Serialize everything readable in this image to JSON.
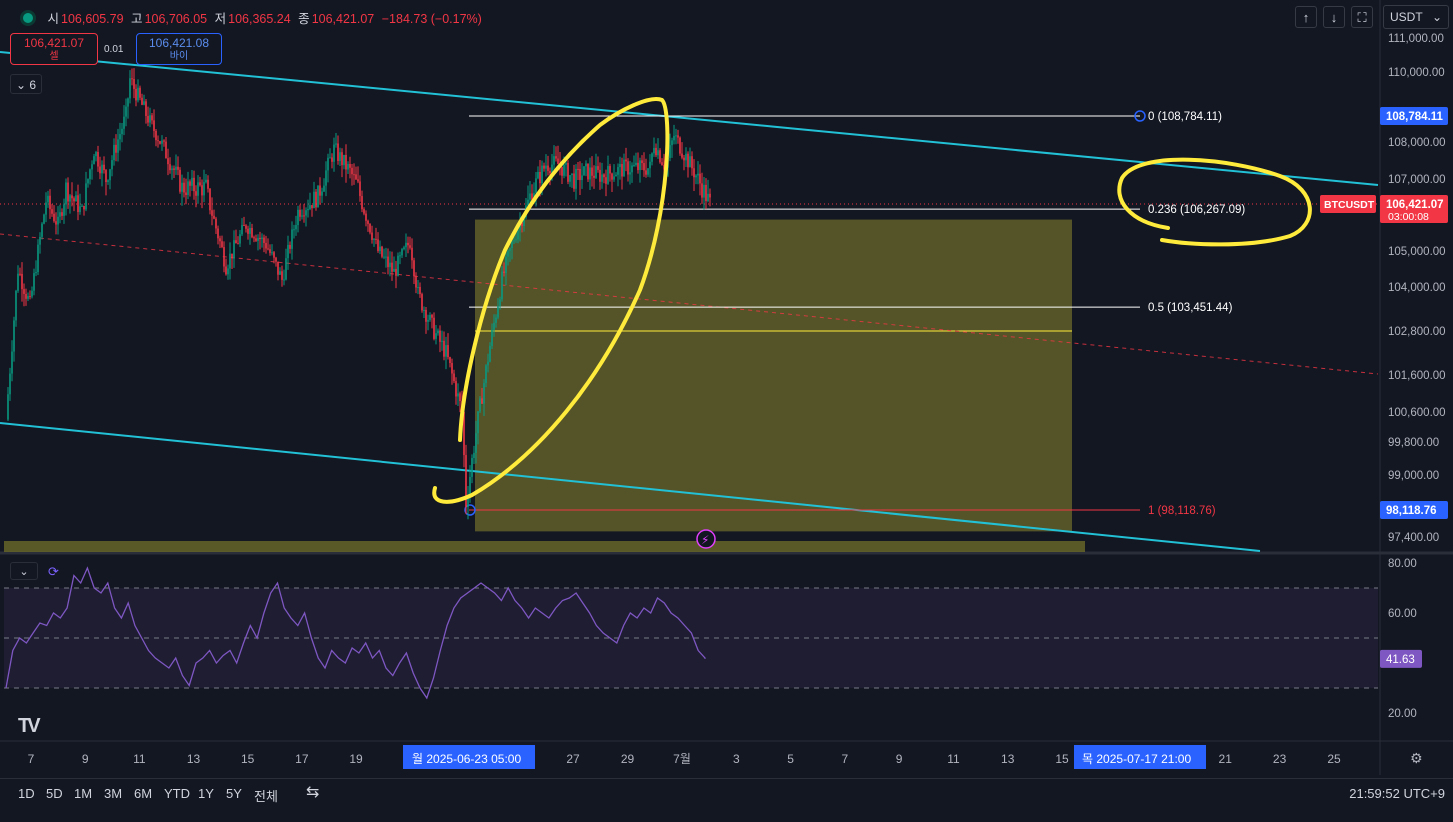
{
  "header": {
    "open_label": "시",
    "open": "106,605.79",
    "high_label": "고",
    "high": "106,706.05",
    "low_label": "저",
    "low": "106,365.24",
    "close_label": "종",
    "close": "106,421.07",
    "change": "−184.73 (−0.17%)"
  },
  "trade": {
    "sell_price": "106,421.07",
    "sell_label": "셀",
    "buy_price": "106,421.08",
    "buy_label": "바이",
    "spread": "0.01"
  },
  "indicator_count": "6",
  "toolbar": {
    "up_icon": "arrow-up-icon",
    "down_icon": "arrow-down-icon",
    "fullscreen_icon": "fullscreen-icon",
    "currency": "USDT"
  },
  "timeframes": [
    "1D",
    "5D",
    "1M",
    "3M",
    "6M",
    "YTD",
    "1Y",
    "5Y",
    "전체"
  ],
  "clock": "21:59:52 UTC+9",
  "colors": {
    "up": "#089981",
    "down": "#f23645",
    "channel": "#22c1d6",
    "annotation": "#ffeb3b",
    "rsi": "#7e57c2",
    "zone": "#6b6a2b"
  },
  "chart_data": {
    "type": "candlestick",
    "symbol": "BTCUSDT",
    "countdown": "03:00:08",
    "last_price": 106421.07,
    "ylim": [
      96800,
      111500
    ],
    "y_ticks": [
      111000.0,
      110000.0,
      108000.0,
      107000.0,
      105000.0,
      104000.0,
      102800.0,
      101600.0,
      100600.0,
      99800.0,
      99000.0,
      97400.0
    ],
    "y_tick_labels": [
      "111,000.00",
      "110,000.00",
      "108,000.00",
      "107,000.00",
      "105,000.00",
      "104,000.00",
      "102,800.00",
      "101,600.00",
      "100,600.00",
      "99,800.00",
      "99,000.00",
      "97,400.00"
    ],
    "x_ticks": [
      {
        "label": "7",
        "day": 7
      },
      {
        "label": "9",
        "day": 9
      },
      {
        "label": "11",
        "day": 11
      },
      {
        "label": "13",
        "day": 13
      },
      {
        "label": "15",
        "day": 15
      },
      {
        "label": "17",
        "day": 17
      },
      {
        "label": "19",
        "day": 19
      },
      {
        "label": "27",
        "day": 27
      },
      {
        "label": "29",
        "day": 29
      },
      {
        "label": "7월",
        "day": 31
      },
      {
        "label": "3",
        "day": 33
      },
      {
        "label": "5",
        "day": 35
      },
      {
        "label": "7",
        "day": 37
      },
      {
        "label": "9",
        "day": 39
      },
      {
        "label": "11",
        "day": 41
      },
      {
        "label": "13",
        "day": 43
      },
      {
        "label": "15",
        "day": 45
      },
      {
        "label": "21",
        "day": 51
      },
      {
        "label": "23",
        "day": 53
      },
      {
        "label": "25",
        "day": 55
      }
    ],
    "x_start_label": "월 2025-06-23   05:00",
    "x_end_label": "목 2025-07-17   21:00",
    "fib_levels": [
      {
        "ratio": "0",
        "price": 108784.11,
        "label": "0 (108,784.11)",
        "color": "#ffffff"
      },
      {
        "ratio": "0.236",
        "price": 106267.09,
        "label": "0.236 (106,267.09)",
        "color": "#ffffff"
      },
      {
        "ratio": "0.5",
        "price": 103451.44,
        "label": "0.5 (103,451.44)",
        "color": "#ffffff"
      },
      {
        "ratio": "1",
        "price": 98118.76,
        "label": "1 (98,118.76)",
        "color": "#f23645"
      }
    ],
    "price_tags": [
      {
        "price": 108784.11,
        "label": "108,784.11",
        "color": "#2962ff"
      },
      {
        "price": 106421.07,
        "label": "106,421.07",
        "color": "#f23645"
      },
      {
        "price": 98118.76,
        "label": "98,118.76",
        "color": "#2962ff"
      }
    ],
    "zone": {
      "top": 105950,
      "bottom": 97550,
      "mid": 102800
    },
    "rsi": {
      "value": 41.63,
      "label": "41.63",
      "ylim": [
        20,
        80
      ],
      "ticks": [
        "80.00",
        "60.00",
        "20.00"
      ],
      "values": [
        30,
        45,
        50,
        48,
        52,
        56,
        55,
        60,
        58,
        62,
        75,
        72,
        78,
        70,
        68,
        72,
        62,
        58,
        64,
        55,
        50,
        45,
        42,
        40,
        38,
        42,
        35,
        31,
        40,
        42,
        45,
        40,
        43,
        45,
        40,
        48,
        55,
        50,
        60,
        68,
        72,
        62,
        58,
        55,
        60,
        50,
        42,
        38,
        45,
        42,
        40,
        46,
        44,
        48,
        42,
        45,
        38,
        35,
        40,
        44,
        36,
        30,
        26,
        34,
        45,
        55,
        62,
        66,
        68,
        70,
        72,
        70,
        68,
        65,
        70,
        65,
        62,
        58,
        62,
        60,
        58,
        62,
        65,
        66,
        68,
        64,
        60,
        55,
        52,
        50
      ],
      "values2": [
        48,
        55,
        60,
        58,
        62,
        60,
        66,
        64,
        60,
        58,
        55,
        52,
        45,
        42
      ]
    }
  }
}
